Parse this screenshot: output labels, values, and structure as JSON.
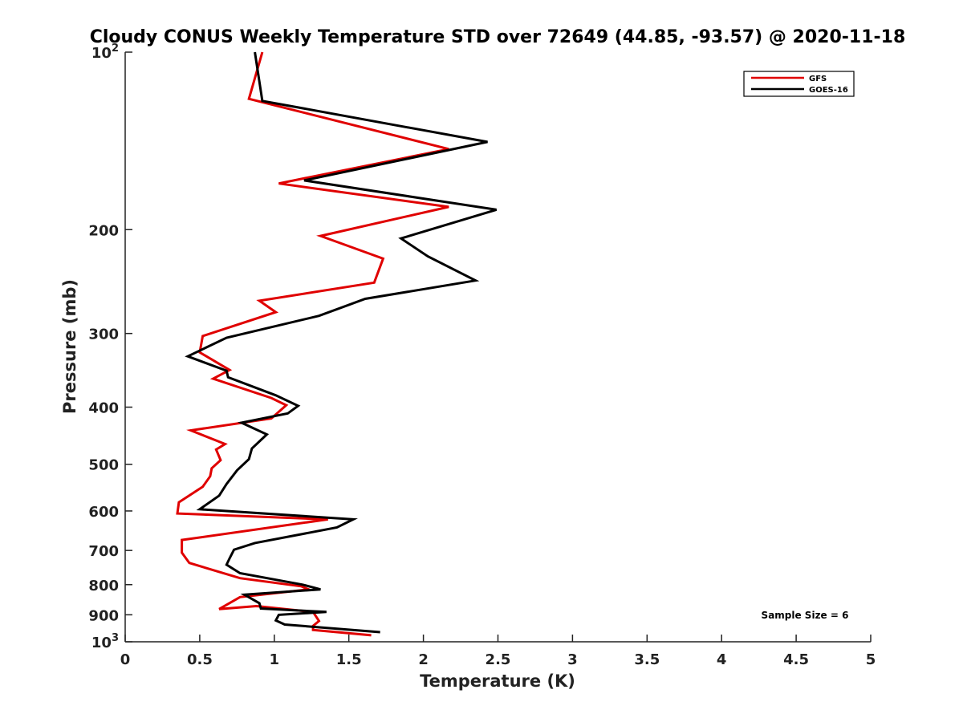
{
  "chart_data": {
    "type": "line",
    "title": "Cloudy CONUS Weekly Temperature STD over 72649 (44.85, -93.57) @ 2020-11-18",
    "xlabel": "Temperature (K)",
    "ylabel": "Pressure (mb)",
    "xlim": [
      0,
      5
    ],
    "ylim": [
      100,
      1000
    ],
    "y_scale": "log",
    "y_reversed": true,
    "x_ticks": [
      "0",
      "0.5",
      "1",
      "1.5",
      "2",
      "2.5",
      "3",
      "3.5",
      "4",
      "4.5",
      "5"
    ],
    "x_tick_values": [
      0,
      0.5,
      1,
      1.5,
      2,
      2.5,
      3,
      3.5,
      4,
      4.5,
      5
    ],
    "y_ticks": [
      {
        "value": 100,
        "base": "10",
        "exp": "2"
      },
      {
        "value": 200,
        "label": "200"
      },
      {
        "value": 300,
        "label": "300"
      },
      {
        "value": 400,
        "label": "400"
      },
      {
        "value": 500,
        "label": "500"
      },
      {
        "value": 600,
        "label": "600"
      },
      {
        "value": 700,
        "label": "700"
      },
      {
        "value": 800,
        "label": "800"
      },
      {
        "value": 900,
        "label": "900"
      },
      {
        "value": 1000,
        "base": "10",
        "exp": "3"
      }
    ],
    "legend": {
      "position": "top-right"
    },
    "grid": false,
    "annotation": "Sample Size = 6",
    "series": [
      {
        "name": "GFS",
        "color": "#e00000",
        "points": [
          [
            0.92,
            100
          ],
          [
            0.83,
            120
          ],
          [
            2.17,
            146
          ],
          [
            1.03,
            167
          ],
          [
            2.17,
            183
          ],
          [
            1.31,
            205
          ],
          [
            1.73,
            224
          ],
          [
            1.67,
            246
          ],
          [
            0.9,
            264
          ],
          [
            1.01,
            276
          ],
          [
            0.52,
            303
          ],
          [
            0.5,
            323
          ],
          [
            0.7,
            346
          ],
          [
            0.59,
            358
          ],
          [
            0.98,
            386
          ],
          [
            1.08,
            397
          ],
          [
            0.98,
            418
          ],
          [
            0.44,
            438
          ],
          [
            0.67,
            462
          ],
          [
            0.61,
            472
          ],
          [
            0.64,
            492
          ],
          [
            0.58,
            508
          ],
          [
            0.57,
            524
          ],
          [
            0.52,
            546
          ],
          [
            0.36,
            580
          ],
          [
            0.35,
            606
          ],
          [
            1.36,
            620
          ],
          [
            0.38,
            672
          ],
          [
            0.38,
            706
          ],
          [
            0.43,
            735
          ],
          [
            0.77,
            780
          ],
          [
            1.18,
            805
          ],
          [
            1.23,
            815
          ],
          [
            0.77,
            840
          ],
          [
            0.63,
            880
          ],
          [
            0.88,
            870
          ],
          [
            1.26,
            890
          ],
          [
            1.3,
            922
          ],
          [
            1.26,
            940
          ],
          [
            1.26,
            955
          ],
          [
            1.65,
            975
          ]
        ]
      },
      {
        "name": "GOES-16",
        "color": "#000000",
        "points": [
          [
            0.87,
            100
          ],
          [
            0.92,
            121
          ],
          [
            2.43,
            142
          ],
          [
            1.2,
            165
          ],
          [
            2.49,
            185
          ],
          [
            1.85,
            207
          ],
          [
            2.03,
            222
          ],
          [
            2.35,
            244
          ],
          [
            1.61,
            262
          ],
          [
            1.3,
            280
          ],
          [
            0.68,
            305
          ],
          [
            0.42,
            328
          ],
          [
            0.68,
            347
          ],
          [
            0.69,
            356
          ],
          [
            1.01,
            382
          ],
          [
            1.16,
            398
          ],
          [
            1.09,
            410
          ],
          [
            0.78,
            425
          ],
          [
            0.95,
            445
          ],
          [
            0.85,
            470
          ],
          [
            0.83,
            490
          ],
          [
            0.75,
            512
          ],
          [
            0.68,
            540
          ],
          [
            0.63,
            565
          ],
          [
            0.5,
            596
          ],
          [
            1.53,
            620
          ],
          [
            1.42,
            640
          ],
          [
            0.87,
            680
          ],
          [
            0.73,
            698
          ],
          [
            0.7,
            722
          ],
          [
            0.68,
            740
          ],
          [
            0.77,
            765
          ],
          [
            1.19,
            800
          ],
          [
            1.31,
            815
          ],
          [
            0.8,
            832
          ],
          [
            0.9,
            860
          ],
          [
            0.91,
            878
          ],
          [
            1.35,
            890
          ],
          [
            1.03,
            900
          ],
          [
            1.01,
            920
          ],
          [
            1.07,
            935
          ],
          [
            1.71,
            963
          ]
        ]
      }
    ]
  }
}
